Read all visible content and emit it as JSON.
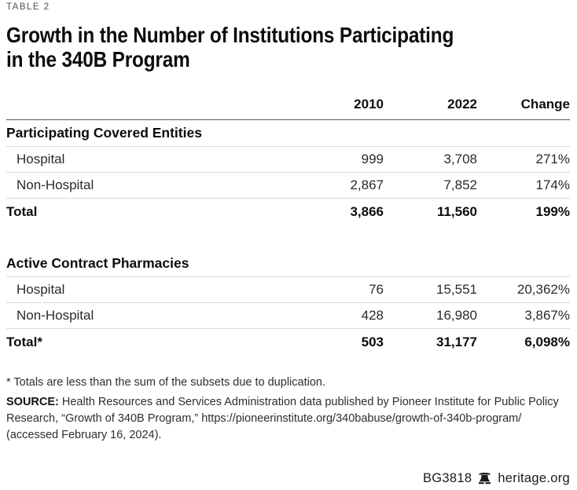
{
  "eyebrow": "TABLE 2",
  "title_lines": [
    "Growth in the Number of Institutions Participating",
    "in the 340B Program"
  ],
  "table": {
    "columns": [
      "2010",
      "2022",
      "Change"
    ],
    "sections": [
      {
        "header": "Participating Covered Entities",
        "rows": [
          {
            "label": "Hospital",
            "y2010": "999",
            "y2022": "3,708",
            "change": "271%",
            "indent": true,
            "total": false
          },
          {
            "label": "Non-Hospital",
            "y2010": "2,867",
            "y2022": "7,852",
            "change": "174%",
            "indent": true,
            "total": false
          },
          {
            "label": "Total",
            "y2010": "3,866",
            "y2022": "11,560",
            "change": "199%",
            "indent": false,
            "total": true
          }
        ]
      },
      {
        "header": "Active Contract Pharmacies",
        "rows": [
          {
            "label": "Hospital",
            "y2010": "76",
            "y2022": "15,551",
            "change": "20,362%",
            "indent": true,
            "total": false
          },
          {
            "label": "Non-Hospital",
            "y2010": "428",
            "y2022": "16,980",
            "change": "3,867%",
            "indent": true,
            "total": false
          },
          {
            "label": "Total*",
            "y2010": "503",
            "y2022": "31,177",
            "change": "6,098%",
            "indent": false,
            "total": true
          }
        ]
      }
    ]
  },
  "footnote": "* Totals are less than the sum of the subsets due to duplication.",
  "source": {
    "label": "SOURCE:",
    "text": "Health Resources and Services Administration data published by Pioneer Institute for Public Policy Research, “Growth of 340B Program,” https://pioneerinstitute.org/340babuse/growth-of-340b-program/ (accessed February 16, 2024)."
  },
  "footer": {
    "doc_id": "BG3818",
    "site": "heritage.org",
    "logo": "liberty-bell-icon"
  },
  "colors": {
    "header_rule": "#555555",
    "row_rule": "#d9d9d9",
    "text": "#2a2a2a",
    "bold_text": "#0d0d0d",
    "eyebrow": "#515151"
  },
  "chart_data": {
    "type": "table",
    "title": "Growth in the Number of Institutions Participating in the 340B Program",
    "columns": [
      "",
      "2010",
      "2022",
      "Change"
    ],
    "rows": [
      [
        "Participating Covered Entities",
        null,
        null,
        null
      ],
      [
        "Hospital",
        999,
        3708,
        "271%"
      ],
      [
        "Non-Hospital",
        2867,
        7852,
        "174%"
      ],
      [
        "Total",
        3866,
        11560,
        "199%"
      ],
      [
        "Active Contract Pharmacies",
        null,
        null,
        null
      ],
      [
        "Hospital",
        76,
        15551,
        "20,362%"
      ],
      [
        "Non-Hospital",
        428,
        16980,
        "3,867%"
      ],
      [
        "Total*",
        503,
        31177,
        "6,098%"
      ]
    ]
  }
}
